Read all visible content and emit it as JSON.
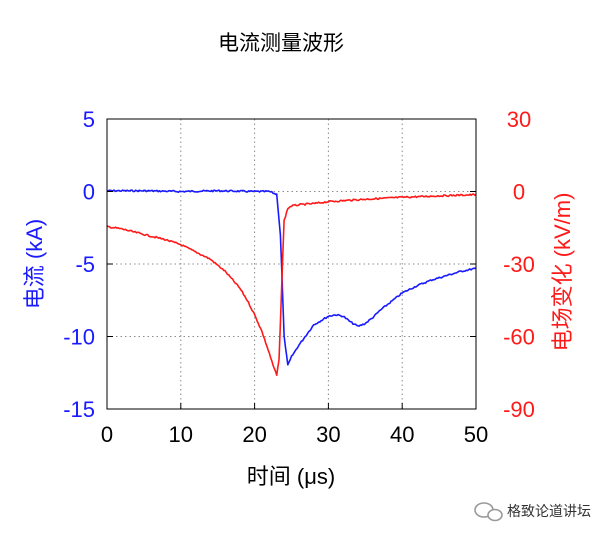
{
  "chart_data": {
    "type": "line",
    "title": "电流测量波形",
    "xlabel": "时间 (μs)",
    "xlim": [
      0,
      50
    ],
    "x_ticks": [
      "0",
      "10",
      "20",
      "30",
      "40",
      "50"
    ],
    "y_left": {
      "label": "电流 (kA)",
      "lim": [
        -15,
        5
      ],
      "ticks": [
        "5",
        "0",
        "-5",
        "-10",
        "-15"
      ],
      "color": "#1a1aff"
    },
    "y_right": {
      "label": "电场变化 (kV/m)",
      "lim": [
        -90,
        30
      ],
      "ticks": [
        "30",
        "0",
        "-30",
        "-60",
        "-90"
      ],
      "color": "#ff1a1a"
    },
    "grid": true,
    "series": [
      {
        "axis": "left",
        "color": "#1a1aff",
        "x": [
          0,
          5,
          10,
          15,
          20,
          22,
          23,
          23.5,
          24,
          24.5,
          25,
          26,
          27,
          28,
          29,
          30,
          31,
          32,
          33,
          34,
          35,
          36,
          37,
          38,
          40,
          42,
          44,
          46,
          48,
          50
        ],
        "y": [
          0.05,
          0.05,
          0.0,
          0.05,
          0.0,
          0.0,
          -0.2,
          -3.0,
          -10.0,
          -12.0,
          -11.4,
          -10.6,
          -9.9,
          -9.2,
          -8.9,
          -8.6,
          -8.5,
          -8.6,
          -9.0,
          -9.3,
          -9.1,
          -8.7,
          -8.2,
          -7.8,
          -7.0,
          -6.5,
          -6.1,
          -5.8,
          -5.5,
          -5.3
        ]
      },
      {
        "axis": "right",
        "color": "#ff1a1a",
        "x": [
          0,
          2,
          4,
          6,
          8,
          10,
          12,
          14,
          16,
          18,
          19,
          20,
          21,
          22,
          22.5,
          23,
          23.3,
          23.6,
          24,
          24.5,
          25,
          26,
          28,
          30,
          35,
          40,
          45,
          50
        ],
        "y": [
          -14.5,
          -15.5,
          -17,
          -18.5,
          -20,
          -22,
          -25,
          -28,
          -33,
          -40,
          -45,
          -51,
          -58,
          -67,
          -72,
          -76,
          -70,
          -45,
          -12,
          -7,
          -6,
          -5.5,
          -5,
          -4.2,
          -3.2,
          -2.4,
          -1.8,
          -1.3
        ]
      }
    ]
  },
  "watermark": {
    "text": "格致论道讲坛",
    "icon": "wechat-icon"
  }
}
